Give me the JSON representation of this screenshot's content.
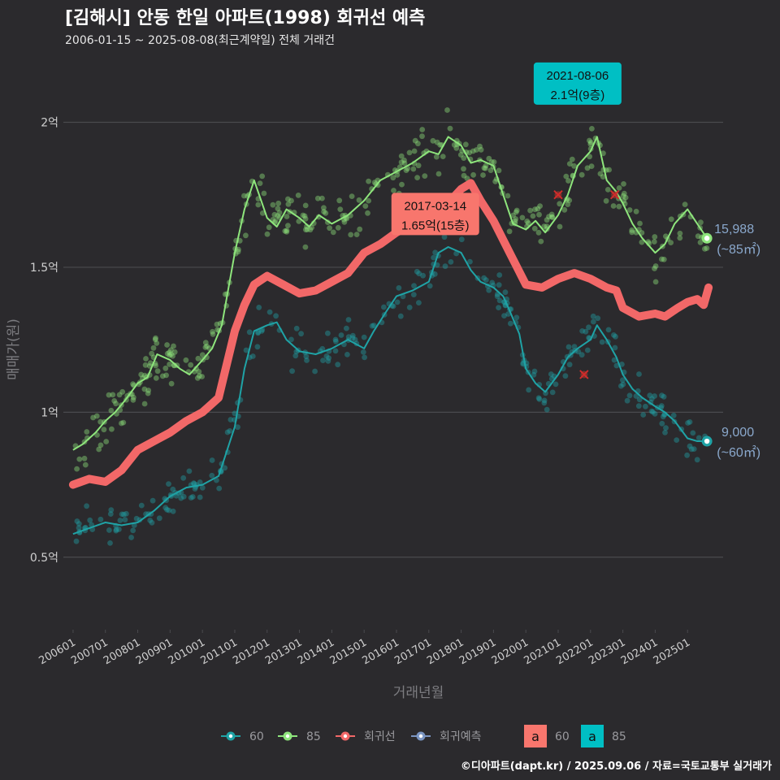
{
  "title": "[김해시] 안동 한일 아파트(1998) 회귀선 예측",
  "subtitle": "2006-01-15 ~ 2025-08-08(최근계약일) 전체 거래건",
  "caption": "©디아파트(dapt.kr) / 2025.09.06 / 자료=국토교통부 실거래가",
  "colors": {
    "background": "#2b2a2d",
    "grid": "#4a4a4e",
    "s60": "#1fa3a6",
    "s85": "#8ee57c",
    "regression": "#f26868",
    "forecast": "#7a95c2",
    "label60": "#00bfc4",
    "label85": "#f8766d"
  },
  "chart_data": {
    "type": "scatter",
    "xlabel": "거래년월",
    "ylabel": "매매가(원)",
    "x_ticks": [
      "200601",
      "200701",
      "200801",
      "200901",
      "201001",
      "201101",
      "201201",
      "201301",
      "201401",
      "201501",
      "201601",
      "201701",
      "201801",
      "201901",
      "202001",
      "202101",
      "202201",
      "202301",
      "202401",
      "202501"
    ],
    "y_ticks": [
      {
        "value": 0.5,
        "label": "0.5억"
      },
      {
        "value": 1.0,
        "label": "1억"
      },
      {
        "value": 1.5,
        "label": "1.5억"
      },
      {
        "value": 2.0,
        "label": "2억"
      }
    ],
    "xlim": [
      2005.7,
      2026.1
    ],
    "ylim": [
      0.25,
      2.22
    ],
    "series": [
      {
        "name": "60",
        "trend": [
          [
            2006.0,
            0.58
          ],
          [
            2006.5,
            0.6
          ],
          [
            2007.0,
            0.62
          ],
          [
            2007.5,
            0.61
          ],
          [
            2008.0,
            0.62
          ],
          [
            2008.5,
            0.66
          ],
          [
            2009.0,
            0.71
          ],
          [
            2009.5,
            0.74
          ],
          [
            2010.0,
            0.75
          ],
          [
            2010.5,
            0.78
          ],
          [
            2011.0,
            0.95
          ],
          [
            2011.3,
            1.15
          ],
          [
            2011.6,
            1.28
          ],
          [
            2012.0,
            1.3
          ],
          [
            2012.3,
            1.31
          ],
          [
            2012.6,
            1.25
          ],
          [
            2013.0,
            1.21
          ],
          [
            2013.5,
            1.2
          ],
          [
            2014.0,
            1.22
          ],
          [
            2014.5,
            1.25
          ],
          [
            2015.0,
            1.22
          ],
          [
            2015.3,
            1.28
          ],
          [
            2015.7,
            1.35
          ],
          [
            2016.0,
            1.4
          ],
          [
            2016.5,
            1.42
          ],
          [
            2017.0,
            1.45
          ],
          [
            2017.3,
            1.55
          ],
          [
            2017.6,
            1.57
          ],
          [
            2018.0,
            1.55
          ],
          [
            2018.3,
            1.49
          ],
          [
            2018.6,
            1.45
          ],
          [
            2019.0,
            1.43
          ],
          [
            2019.3,
            1.4
          ],
          [
            2019.5,
            1.35
          ],
          [
            2019.8,
            1.27
          ],
          [
            2020.0,
            1.15
          ],
          [
            2020.3,
            1.1
          ],
          [
            2020.6,
            1.07
          ],
          [
            2021.0,
            1.13
          ],
          [
            2021.3,
            1.19
          ],
          [
            2021.6,
            1.22
          ],
          [
            2022.0,
            1.25
          ],
          [
            2022.2,
            1.3
          ],
          [
            2022.5,
            1.25
          ],
          [
            2022.8,
            1.19
          ],
          [
            2023.0,
            1.13
          ],
          [
            2023.3,
            1.08
          ],
          [
            2023.6,
            1.05
          ],
          [
            2024.0,
            1.02
          ],
          [
            2024.3,
            1.0
          ],
          [
            2024.6,
            0.97
          ],
          [
            2025.0,
            0.91
          ],
          [
            2025.3,
            0.9
          ],
          [
            2025.6,
            0.9
          ]
        ]
      },
      {
        "name": "85",
        "trend": [
          [
            2006.0,
            0.87
          ],
          [
            2006.3,
            0.89
          ],
          [
            2006.7,
            0.93
          ],
          [
            2007.0,
            0.97
          ],
          [
            2007.3,
            1.0
          ],
          [
            2007.6,
            1.04
          ],
          [
            2008.0,
            1.1
          ],
          [
            2008.3,
            1.12
          ],
          [
            2008.6,
            1.2
          ],
          [
            2009.0,
            1.18
          ],
          [
            2009.3,
            1.15
          ],
          [
            2009.6,
            1.13
          ],
          [
            2010.0,
            1.18
          ],
          [
            2010.3,
            1.22
          ],
          [
            2010.6,
            1.3
          ],
          [
            2011.0,
            1.55
          ],
          [
            2011.3,
            1.7
          ],
          [
            2011.6,
            1.8
          ],
          [
            2012.0,
            1.67
          ],
          [
            2012.3,
            1.64
          ],
          [
            2012.6,
            1.7
          ],
          [
            2013.0,
            1.67
          ],
          [
            2013.3,
            1.64
          ],
          [
            2013.6,
            1.68
          ],
          [
            2014.0,
            1.65
          ],
          [
            2014.5,
            1.68
          ],
          [
            2015.0,
            1.73
          ],
          [
            2015.5,
            1.8
          ],
          [
            2016.0,
            1.83
          ],
          [
            2016.5,
            1.86
          ],
          [
            2017.0,
            1.9
          ],
          [
            2017.3,
            1.89
          ],
          [
            2017.6,
            1.95
          ],
          [
            2018.0,
            1.92
          ],
          [
            2018.3,
            1.86
          ],
          [
            2018.6,
            1.87
          ],
          [
            2019.0,
            1.85
          ],
          [
            2019.3,
            1.75
          ],
          [
            2019.6,
            1.65
          ],
          [
            2020.0,
            1.63
          ],
          [
            2020.3,
            1.66
          ],
          [
            2020.6,
            1.62
          ],
          [
            2021.0,
            1.68
          ],
          [
            2021.3,
            1.75
          ],
          [
            2021.6,
            1.85
          ],
          [
            2022.0,
            1.9
          ],
          [
            2022.2,
            1.95
          ],
          [
            2022.5,
            1.8
          ],
          [
            2022.8,
            1.76
          ],
          [
            2023.0,
            1.72
          ],
          [
            2023.3,
            1.65
          ],
          [
            2023.6,
            1.6
          ],
          [
            2024.0,
            1.55
          ],
          [
            2024.3,
            1.58
          ],
          [
            2024.6,
            1.65
          ],
          [
            2025.0,
            1.7
          ],
          [
            2025.3,
            1.65
          ],
          [
            2025.6,
            1.6
          ]
        ]
      },
      {
        "name": "회귀선",
        "trend": [
          [
            2006.0,
            0.75
          ],
          [
            2006.5,
            0.77
          ],
          [
            2007.0,
            0.76
          ],
          [
            2007.5,
            0.8
          ],
          [
            2008.0,
            0.87
          ],
          [
            2008.5,
            0.9
          ],
          [
            2009.0,
            0.93
          ],
          [
            2009.5,
            0.97
          ],
          [
            2010.0,
            1.0
          ],
          [
            2010.5,
            1.05
          ],
          [
            2011.0,
            1.28
          ],
          [
            2011.3,
            1.37
          ],
          [
            2011.6,
            1.44
          ],
          [
            2012.0,
            1.47
          ],
          [
            2012.5,
            1.44
          ],
          [
            2013.0,
            1.41
          ],
          [
            2013.5,
            1.42
          ],
          [
            2014.0,
            1.45
          ],
          [
            2014.5,
            1.48
          ],
          [
            2015.0,
            1.55
          ],
          [
            2015.5,
            1.58
          ],
          [
            2016.0,
            1.62
          ],
          [
            2016.5,
            1.65
          ],
          [
            2017.0,
            1.67
          ],
          [
            2017.2,
            1.65
          ],
          [
            2017.5,
            1.71
          ],
          [
            2018.0,
            1.77
          ],
          [
            2018.3,
            1.79
          ],
          [
            2018.6,
            1.73
          ],
          [
            2019.0,
            1.66
          ],
          [
            2019.5,
            1.55
          ],
          [
            2020.0,
            1.44
          ],
          [
            2020.5,
            1.43
          ],
          [
            2021.0,
            1.46
          ],
          [
            2021.5,
            1.48
          ],
          [
            2022.0,
            1.46
          ],
          [
            2022.5,
            1.43
          ],
          [
            2022.8,
            1.42
          ],
          [
            2023.0,
            1.36
          ],
          [
            2023.5,
            1.33
          ],
          [
            2024.0,
            1.34
          ],
          [
            2024.3,
            1.33
          ],
          [
            2024.7,
            1.36
          ],
          [
            2025.0,
            1.38
          ],
          [
            2025.3,
            1.39
          ],
          [
            2025.5,
            1.37
          ],
          [
            2025.65,
            1.43
          ]
        ]
      },
      {
        "name": "회귀예측"
      }
    ],
    "annotations": [
      {
        "date": "2017-03-14",
        "price": "1.65억(15층)",
        "x": 2017.2,
        "y": 1.65,
        "series": "85"
      },
      {
        "date": "2021-08-06",
        "price": "2.1억(9층)",
        "x": 2021.6,
        "y": 2.1,
        "series": "60"
      }
    ],
    "end_labels": [
      {
        "value": "15,988",
        "area": "(~85㎡)",
        "x": 2025.6,
        "y": 1.6,
        "series": "85"
      },
      {
        "value": "9,000",
        "area": "(~60㎡)",
        "x": 2025.6,
        "y": 0.9,
        "series": "60"
      }
    ],
    "highlight_points": [
      {
        "x": 2021.0,
        "y": 1.75
      },
      {
        "x": 2022.75,
        "y": 1.75
      },
      {
        "x": 2021.8,
        "y": 1.13
      }
    ],
    "legend": {
      "position": "bottom",
      "items": [
        "60",
        "85",
        "회귀선",
        "회귀예측"
      ],
      "label_items": [
        {
          "key": "a",
          "text": "60"
        },
        {
          "key": "a",
          "text": "85"
        }
      ]
    }
  }
}
